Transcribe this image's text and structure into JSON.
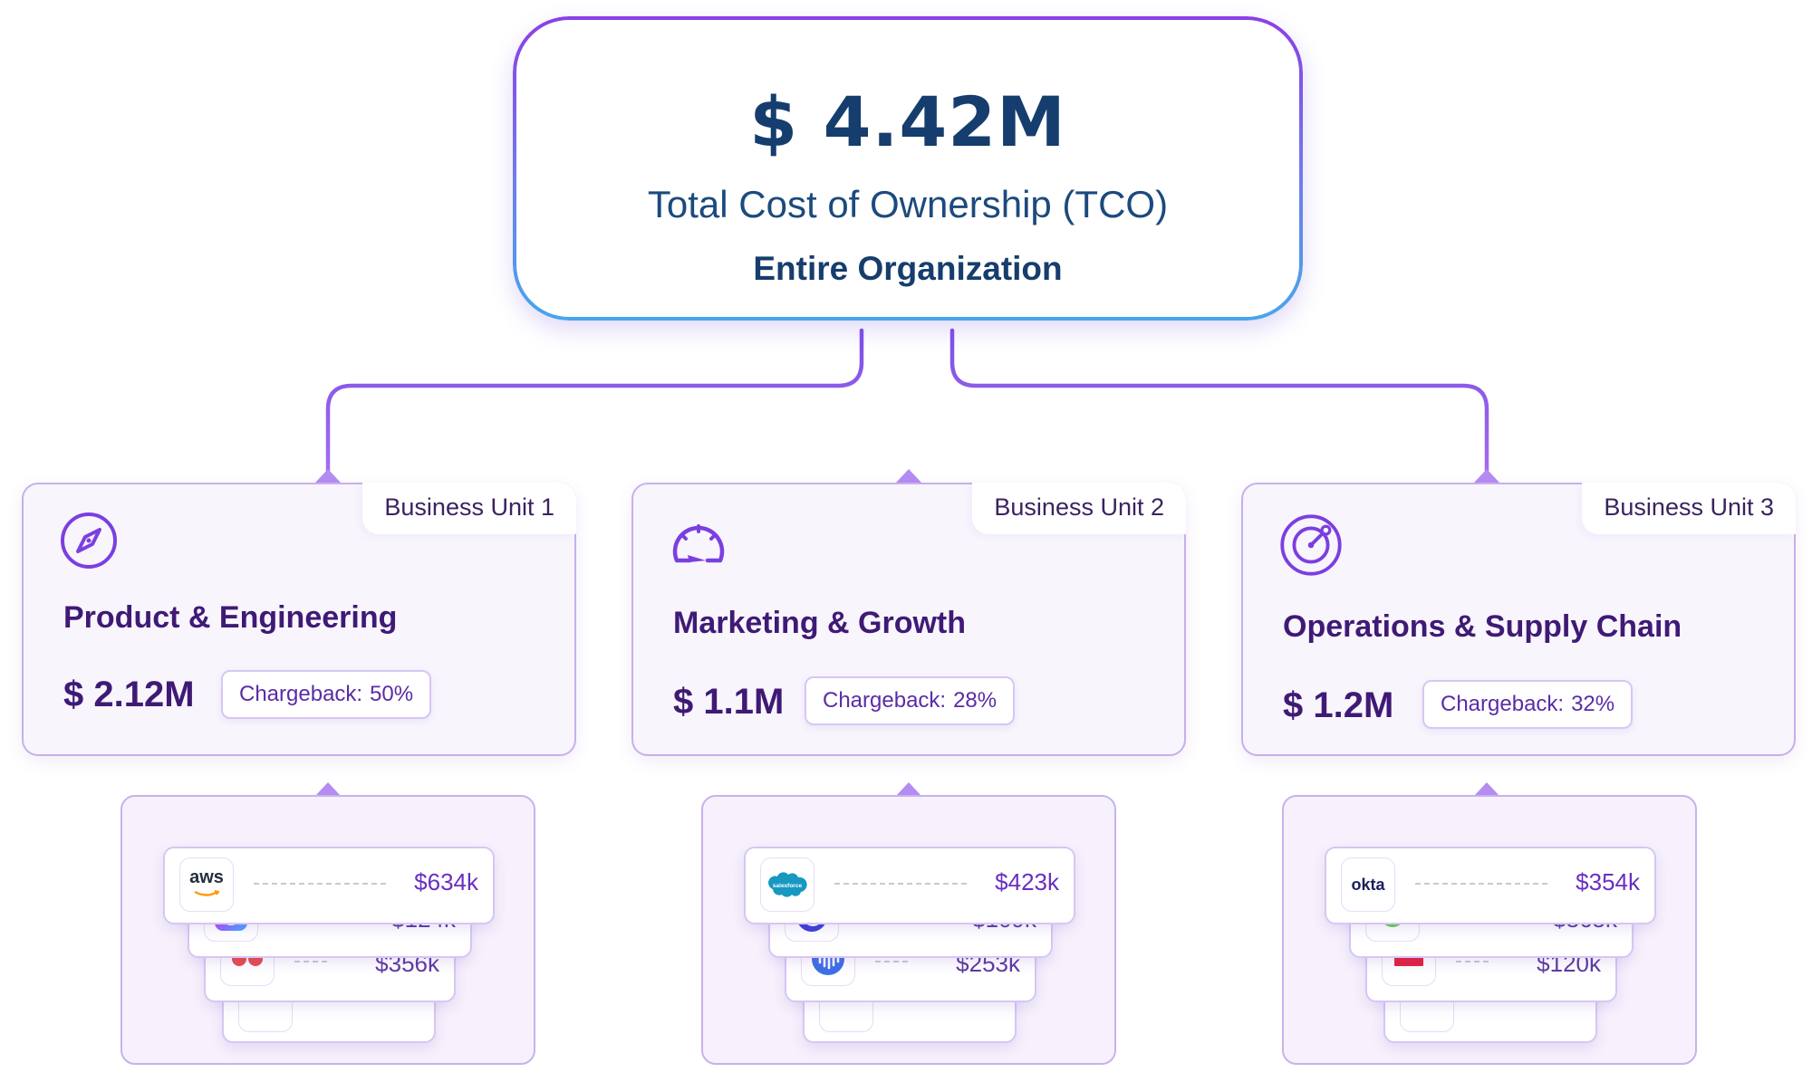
{
  "root": {
    "total": "$ 4.42M",
    "label": "Total Cost of Ownership (TCO)",
    "scope": "Entire Organization"
  },
  "colors": {
    "accent": "#8b5cf6",
    "connector": "#8a4fe0",
    "title": "#153d6e",
    "unit_text": "#3f1a75"
  },
  "units": [
    {
      "tag": "Business Unit 1",
      "icon": "compass-icon",
      "name": "Product & Engineering",
      "cost": "$ 2.12M",
      "chargeback_label": "Chargeback:",
      "chargeback_value": "50%",
      "vendors": [
        {
          "logo": "aws-logo",
          "logo_text": "aws",
          "amount": "$634k"
        },
        {
          "logo": "creative-cloud-logo",
          "amount": "$124k"
        },
        {
          "logo": "monday-logo",
          "amount": "$356k"
        },
        {
          "logo": "red-dots-logo",
          "amount": ""
        }
      ]
    },
    {
      "tag": "Business Unit 2",
      "icon": "speedometer-icon",
      "name": "Marketing & Growth",
      "cost": "$ 1.1M",
      "chargeback_label": "Chargeback:",
      "chargeback_value": "28%",
      "vendors": [
        {
          "logo": "salesforce-logo",
          "logo_text": "salesforce",
          "amount": "$423k"
        },
        {
          "logo": "c-logo",
          "amount": "$109k"
        },
        {
          "logo": "audio-wave-logo",
          "amount": "$253k"
        },
        {
          "logo": "teal-logo",
          "amount": ""
        }
      ]
    },
    {
      "tag": "Business Unit 3",
      "icon": "radar-icon",
      "name": "Operations & Supply Chain",
      "cost": "$ 1.2M",
      "chargeback_label": "Chargeback:",
      "chargeback_value": "32%",
      "vendors": [
        {
          "logo": "okta-logo",
          "logo_text": "okta",
          "amount": "$354k"
        },
        {
          "logo": "green-logo",
          "amount": "$365k"
        },
        {
          "logo": "red-ship-logo",
          "amount": "$120k"
        },
        {
          "logo": "red-dots-logo",
          "amount": ""
        }
      ]
    }
  ]
}
